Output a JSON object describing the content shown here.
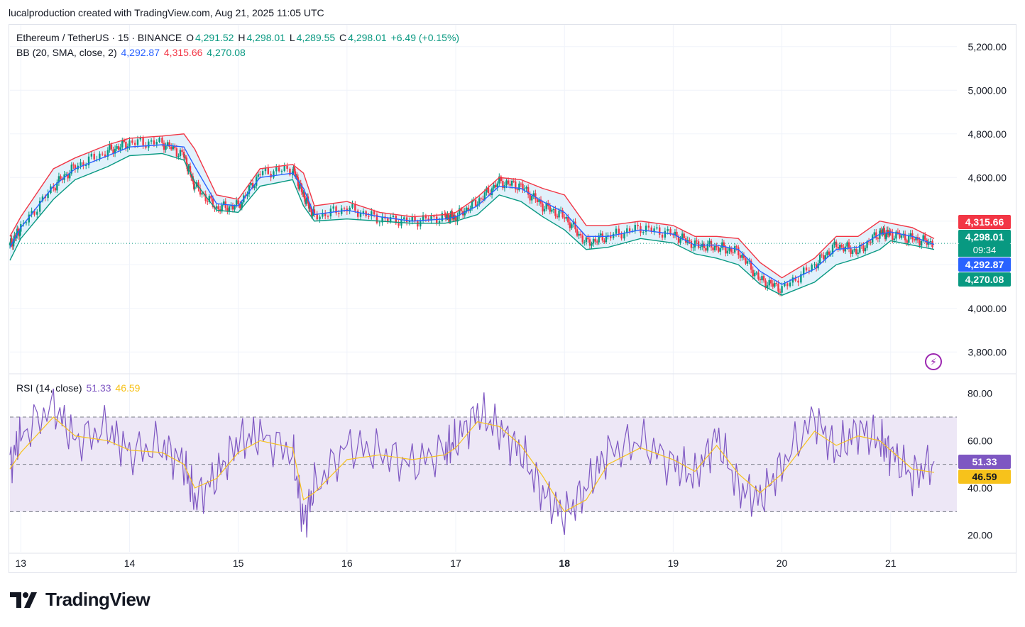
{
  "header": {
    "attribution": "lucalproduction created with TradingView.com, Aug 21, 2025 11:05 UTC"
  },
  "legend": {
    "symbol": "Ethereum / TetherUS · 15 · BINANCE",
    "o_label": "O",
    "o": "4,291.52",
    "h_label": "H",
    "h": "4,298.01",
    "l_label": "L",
    "l": "4,289.55",
    "c_label": "C",
    "c": "4,298.01",
    "change": "+6.49 (+0.15%)",
    "bb_label": "BB (20, SMA, close, 2)",
    "bb_basis": "4,292.87",
    "bb_upper": "4,315.66",
    "bb_lower": "4,270.08",
    "rsi_label": "RSI (14, close)",
    "rsi_value": "51.33",
    "rsi_ma": "46.59"
  },
  "tags": {
    "upper": "4,315.66",
    "price": "4,298.01",
    "countdown": "09:34",
    "basis": "4,292.87",
    "lower": "4,270.08",
    "rsi": "51.33",
    "rsi_ma": "46.59"
  },
  "brand": {
    "name": "TradingView"
  },
  "colors": {
    "upper": "#f23645",
    "basis": "#2962ff",
    "lower": "#089981",
    "up": "#089981",
    "down": "#f23645",
    "rsi": "#7e57c2",
    "rsi_ma": "#f7c21b",
    "band_fill": "#e1f1fb",
    "rsi_fill": "#ede7f6"
  },
  "chart_data": [
    {
      "type": "line",
      "title": "Ethereum / TetherUS · 15 · BINANCE",
      "x": [
        "12.9",
        "13",
        "13.3",
        "13.5",
        "13.8",
        "14",
        "14.3",
        "14.5",
        "14.6",
        "14.8",
        "15",
        "15.2",
        "15.5",
        "15.6",
        "15.7",
        "16",
        "16.3",
        "16.6",
        "16.9",
        "17",
        "17.2",
        "17.4",
        "17.6",
        "17.8",
        "18",
        "18.2",
        "18.4",
        "18.7",
        "19",
        "19.2",
        "19.4",
        "19.6",
        "19.8",
        "20",
        "20.3",
        "20.5",
        "20.7",
        "20.9",
        "21",
        "21.2",
        "21.4"
      ],
      "series": [
        {
          "name": "Upper",
          "values": [
            4330,
            4420,
            4640,
            4690,
            4750,
            4780,
            4790,
            4800,
            4730,
            4520,
            4500,
            4640,
            4660,
            4620,
            4470,
            4490,
            4440,
            4420,
            4430,
            4440,
            4510,
            4600,
            4590,
            4550,
            4520,
            4380,
            4380,
            4400,
            4380,
            4330,
            4330,
            4320,
            4210,
            4140,
            4230,
            4330,
            4330,
            4400,
            4390,
            4370,
            4320
          ]
        },
        {
          "name": "Basis",
          "values": [
            4280,
            4370,
            4560,
            4640,
            4700,
            4740,
            4750,
            4740,
            4650,
            4480,
            4470,
            4600,
            4620,
            4550,
            4430,
            4450,
            4420,
            4400,
            4410,
            4420,
            4470,
            4560,
            4550,
            4490,
            4440,
            4330,
            4330,
            4360,
            4340,
            4290,
            4290,
            4270,
            4170,
            4110,
            4180,
            4270,
            4280,
            4340,
            4350,
            4330,
            4293
          ]
        },
        {
          "name": "Lower",
          "values": [
            4220,
            4320,
            4500,
            4590,
            4650,
            4700,
            4710,
            4680,
            4580,
            4450,
            4440,
            4560,
            4590,
            4470,
            4400,
            4410,
            4400,
            4390,
            4390,
            4400,
            4430,
            4520,
            4490,
            4420,
            4360,
            4270,
            4280,
            4320,
            4300,
            4250,
            4230,
            4200,
            4110,
            4060,
            4120,
            4200,
            4230,
            4270,
            4310,
            4290,
            4270
          ]
        },
        {
          "name": "Price",
          "values": [
            4290,
            4370,
            4560,
            4650,
            4720,
            4760,
            4760,
            4700,
            4560,
            4460,
            4470,
            4620,
            4640,
            4520,
            4420,
            4460,
            4410,
            4400,
            4420,
            4420,
            4490,
            4580,
            4560,
            4470,
            4420,
            4300,
            4330,
            4370,
            4340,
            4290,
            4280,
            4260,
            4130,
            4090,
            4200,
            4290,
            4260,
            4350,
            4340,
            4320,
            4298
          ]
        }
      ],
      "xlabel": "",
      "ylabel": "",
      "ylim": [
        3700,
        5300
      ],
      "x_ticks": [
        "13",
        "14",
        "15",
        "16",
        "17",
        "18",
        "19",
        "20",
        "21"
      ],
      "y_ticks": [
        "3,800.00",
        "4,000.00",
        "4,200.00",
        "4,400.00",
        "4,600.00",
        "4,800.00",
        "5,000.00",
        "5,200.00"
      ],
      "grid": true
    },
    {
      "type": "line",
      "title": "RSI (14, close)",
      "x": [
        "12.9",
        "13",
        "13.3",
        "13.5",
        "13.8",
        "14",
        "14.3",
        "14.5",
        "14.6",
        "14.8",
        "15",
        "15.2",
        "15.5",
        "15.6",
        "15.7",
        "16",
        "16.3",
        "16.6",
        "16.9",
        "17",
        "17.2",
        "17.4",
        "17.6",
        "17.8",
        "18",
        "18.2",
        "18.4",
        "18.7",
        "19",
        "19.2",
        "19.4",
        "19.6",
        "19.8",
        "20",
        "20.3",
        "20.5",
        "20.7",
        "20.9",
        "21",
        "21.2",
        "21.4"
      ],
      "series": [
        {
          "name": "RSI",
          "values": [
            50,
            62,
            75,
            60,
            65,
            55,
            58,
            50,
            35,
            45,
            60,
            62,
            55,
            25,
            40,
            58,
            55,
            50,
            56,
            60,
            72,
            65,
            55,
            38,
            28,
            40,
            55,
            60,
            50,
            45,
            62,
            40,
            35,
            50,
            70,
            55,
            65,
            60,
            55,
            45,
            51.33
          ]
        },
        {
          "name": "RSI MA",
          "values": [
            48,
            55,
            70,
            62,
            60,
            56,
            55,
            50,
            40,
            44,
            55,
            60,
            57,
            35,
            38,
            52,
            54,
            52,
            54,
            57,
            68,
            66,
            58,
            45,
            30,
            35,
            50,
            57,
            52,
            47,
            58,
            46,
            38,
            46,
            64,
            58,
            62,
            60,
            56,
            48,
            46.59
          ]
        }
      ],
      "ylim": [
        13,
        88
      ],
      "bands": [
        30,
        50,
        70
      ],
      "y_ticks": [
        "20.00",
        "40.00",
        "60.00",
        "80.00"
      ]
    }
  ]
}
